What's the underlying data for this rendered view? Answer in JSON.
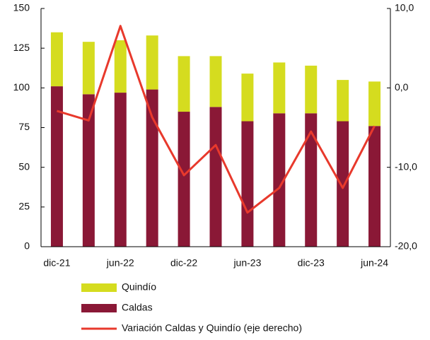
{
  "chart_data": {
    "type": "bar",
    "stacked": true,
    "categories": [
      "dic-21",
      null,
      "jun-22",
      null,
      "dic-22",
      null,
      "jun-23",
      null,
      "dic-23",
      null,
      "jun-24"
    ],
    "series": [
      {
        "name": "Quindío",
        "type": "bar",
        "color": "#d5dc1f",
        "values": [
          34,
          33,
          33,
          34,
          35,
          32,
          30,
          32,
          30,
          26,
          28
        ]
      },
      {
        "name": "Caldas",
        "type": "bar",
        "color": "#8a1836",
        "values": [
          101,
          96,
          97,
          99,
          85,
          88,
          79,
          84,
          84,
          79,
          76
        ]
      },
      {
        "name": "Variación Caldas y Quindío (eje derecho)",
        "type": "line",
        "axis": "y2",
        "color": "#e8392c",
        "values": [
          -2.9,
          -4.1,
          7.8,
          -3.7,
          -11.0,
          -7.2,
          -15.7,
          -12.6,
          -5.5,
          -12.6,
          -4.8
        ]
      }
    ],
    "ylim": [
      0,
      150
    ],
    "yticks": [
      0,
      25,
      50,
      75,
      100,
      125,
      150
    ],
    "y2lim": [
      -20,
      10
    ],
    "y2ticks": [
      {
        "value": -20,
        "label": "-20,0"
      },
      {
        "value": -10,
        "label": "-10,0"
      },
      {
        "value": 0,
        "label": "0,0"
      },
      {
        "value": 10,
        "label": "10,0"
      }
    ]
  }
}
